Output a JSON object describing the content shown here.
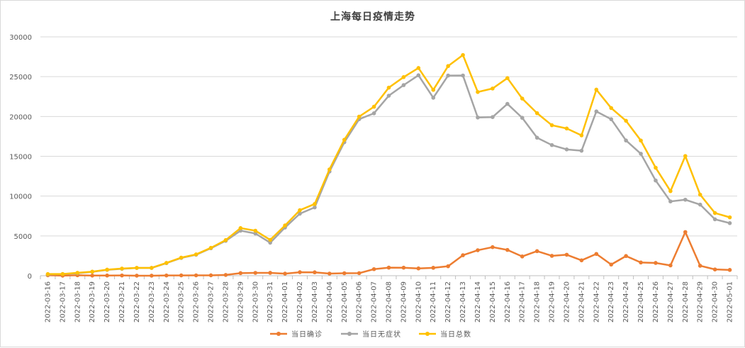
{
  "chart_data": {
    "type": "line",
    "title": "上海每日疫情走势",
    "xlabel": "",
    "ylabel": "",
    "ylim": [
      0,
      30000
    ],
    "yticks": [
      0,
      5000,
      10000,
      15000,
      20000,
      25000,
      30000
    ],
    "grid": true,
    "legend_position": "bottom",
    "categories": [
      "2022-03-16",
      "2022-03-17",
      "2022-03-18",
      "2022-03-19",
      "2022-03-20",
      "2022-03-21",
      "2022-03-22",
      "2022-03-23",
      "2022-03-24",
      "2022-03-25",
      "2022-03-26",
      "2022-03-27",
      "2022-03-28",
      "2022-03-29",
      "2022-03-30",
      "2022-03-31",
      "2022-04-01",
      "2022-04-02",
      "2022-04-03",
      "2022-04-04",
      "2022-04-05",
      "2022-04-06",
      "2022-04-07",
      "2022-04-08",
      "2022-04-09",
      "2022-04-10",
      "2022-04-11",
      "2022-04-12",
      "2022-04-13",
      "2022-04-14",
      "2022-04-15",
      "2022-04-16",
      "2022-04-17",
      "2022-04-18",
      "2022-04-19",
      "2022-04-20",
      "2022-04-21",
      "2022-04-22",
      "2022-04-23",
      "2022-04-24",
      "2022-04-25",
      "2022-04-26",
      "2022-04-27",
      "2022-04-28",
      "2022-04-29",
      "2022-04-30",
      "2022-05-01"
    ],
    "series": [
      {
        "name": "当日确诊",
        "color": "#ed7d31",
        "values": [
          57,
          8,
          57,
          17,
          24,
          31,
          4,
          4,
          29,
          38,
          45,
          50,
          96,
          326,
          355,
          358,
          260,
          438,
          425,
          268,
          311,
          322,
          824,
          1015,
          1006,
          914,
          994,
          1189,
          2573,
          3200,
          3590,
          3238,
          2417,
          3084,
          2494,
          2634,
          1931,
          2736,
          1401,
          2472,
          1661,
          1606,
          1292,
          5487,
          1249,
          788,
          727
        ]
      },
      {
        "name": "当日无症状",
        "color": "#a5a5a5",
        "values": [
          150,
          203,
          309,
          492,
          734,
          865,
          977,
          979,
          1580,
          2231,
          2631,
          3450,
          4381,
          5656,
          5298,
          4144,
          6051,
          7788,
          8581,
          13086,
          16766,
          19660,
          20398,
          22609,
          23937,
          25173,
          22348,
          25141,
          25146,
          19872,
          19923,
          21582,
          19831,
          17332,
          16407,
          15861,
          15698,
          20634,
          19657,
          16983,
          15319,
          11956,
          9330,
          9545,
          8932,
          7084,
          6606
        ]
      },
      {
        "name": "当日总数",
        "color": "#ffc000",
        "values": [
          207,
          211,
          366,
          509,
          758,
          896,
          981,
          983,
          1609,
          2269,
          2676,
          3500,
          4477,
          5982,
          5653,
          4502,
          6311,
          8226,
          9006,
          13354,
          17077,
          19982,
          21222,
          23624,
          24943,
          26087,
          23342,
          26330,
          27719,
          23072,
          23513,
          24820,
          22248,
          20416,
          18901,
          18495,
          17629,
          23370,
          21058,
          19455,
          16980,
          13562,
          10622,
          15032,
          10181,
          7872,
          7333
        ]
      }
    ]
  }
}
